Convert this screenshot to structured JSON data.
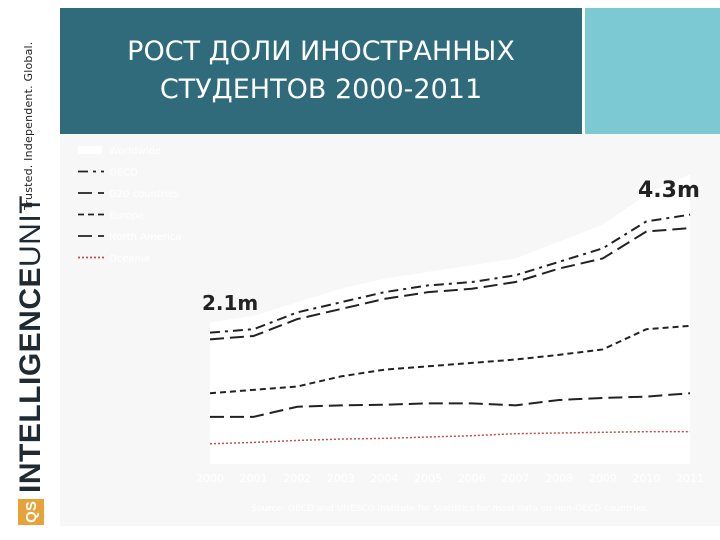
{
  "sidebar": {
    "tagline": "Trusted. Independent. Global.",
    "logo_badge": "QS",
    "logo_text_bold": "INTELLIGENCE",
    "logo_text_thin": "UNIT",
    "logo_color": "#e8a23a"
  },
  "slide": {
    "title": "РОСТ ДОЛИ ИНОСТРАННЫХ СТУДЕНТОВ 2000-2011",
    "title_bg": "#2f6b7a",
    "accent": "#7cc8d3"
  },
  "chart_data": {
    "type": "line",
    "x": [
      "2000",
      "2001",
      "2002",
      "2003",
      "2004",
      "2005",
      "2006",
      "2007",
      "2008",
      "2009",
      "2010",
      "2011"
    ],
    "ylim": [
      0,
      4.6
    ],
    "series": [
      {
        "name": "Worldwide",
        "style": "area-white",
        "values": [
          2.1,
          2.2,
          2.4,
          2.6,
          2.75,
          2.85,
          2.95,
          3.05,
          3.3,
          3.55,
          4.0,
          4.3
        ]
      },
      {
        "name": "OECD",
        "style": "dashdot",
        "values": [
          1.95,
          2.0,
          2.25,
          2.4,
          2.55,
          2.65,
          2.7,
          2.8,
          3.0,
          3.2,
          3.6,
          3.7
        ]
      },
      {
        "name": "G20 countries",
        "style": "longdash",
        "values": [
          1.85,
          1.9,
          2.15,
          2.3,
          2.45,
          2.55,
          2.6,
          2.7,
          2.9,
          3.05,
          3.45,
          3.5
        ]
      },
      {
        "name": "Europe",
        "style": "dash",
        "values": [
          1.05,
          1.1,
          1.15,
          1.3,
          1.4,
          1.45,
          1.5,
          1.55,
          1.62,
          1.7,
          2.0,
          2.05
        ]
      },
      {
        "name": "North America",
        "style": "longdash",
        "values": [
          0.7,
          0.7,
          0.85,
          0.87,
          0.88,
          0.9,
          0.9,
          0.87,
          0.95,
          0.98,
          1.0,
          1.05
        ]
      },
      {
        "name": "Oceania",
        "style": "dotted-red",
        "values": [
          0.3,
          0.32,
          0.35,
          0.37,
          0.38,
          0.4,
          0.42,
          0.45,
          0.46,
          0.47,
          0.48,
          0.48
        ]
      }
    ],
    "annotations": {
      "start": "2.1m",
      "end": "4.3m"
    },
    "source": "Source: OECD and UNESCO Institute for Statistics for most data on non-OECD countries."
  }
}
